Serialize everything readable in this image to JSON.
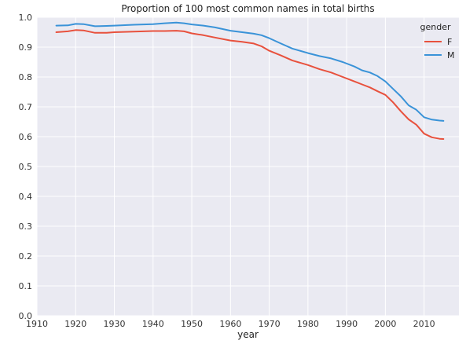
{
  "chart_data": {
    "type": "line",
    "title": "Proportion of 100 most common names in total births",
    "xlabel": "year",
    "ylabel": "",
    "xlim": [
      1910,
      2019
    ],
    "ylim": [
      0.0,
      1.0
    ],
    "xticks": [
      1910,
      1920,
      1930,
      1940,
      1950,
      1960,
      1970,
      1980,
      1990,
      2000,
      2010
    ],
    "yticks": [
      "0.0",
      "0.1",
      "0.2",
      "0.3",
      "0.4",
      "0.5",
      "0.6",
      "0.7",
      "0.8",
      "0.9",
      "1.0"
    ],
    "grid": true,
    "legend": {
      "title": "gender",
      "placement": "top-right"
    },
    "colors": {
      "background": "#eaeaf2",
      "grid": "#ffffff",
      "F": "#e8513d",
      "M": "#3a93d8"
    },
    "x": [
      1915,
      1918,
      1920,
      1922,
      1925,
      1928,
      1930,
      1935,
      1940,
      1943,
      1946,
      1948,
      1950,
      1953,
      1956,
      1960,
      1963,
      1966,
      1968,
      1970,
      1973,
      1976,
      1980,
      1983,
      1986,
      1989,
      1992,
      1994,
      1996,
      1998,
      2000,
      2002,
      2004,
      2006,
      2008,
      2010,
      2012,
      2014,
      2015
    ],
    "series": [
      {
        "name": "F",
        "values": [
          0.95,
          0.953,
          0.957,
          0.956,
          0.948,
          0.948,
          0.95,
          0.952,
          0.954,
          0.954,
          0.955,
          0.953,
          0.946,
          0.94,
          0.932,
          0.922,
          0.918,
          0.912,
          0.903,
          0.888,
          0.872,
          0.855,
          0.84,
          0.826,
          0.815,
          0.8,
          0.785,
          0.775,
          0.765,
          0.752,
          0.74,
          0.715,
          0.685,
          0.658,
          0.64,
          0.61,
          0.598,
          0.593,
          0.592
        ]
      },
      {
        "name": "M",
        "values": [
          0.972,
          0.973,
          0.978,
          0.977,
          0.97,
          0.971,
          0.972,
          0.975,
          0.977,
          0.98,
          0.982,
          0.98,
          0.976,
          0.972,
          0.966,
          0.955,
          0.95,
          0.945,
          0.94,
          0.93,
          0.912,
          0.895,
          0.88,
          0.87,
          0.862,
          0.85,
          0.835,
          0.822,
          0.815,
          0.803,
          0.785,
          0.76,
          0.735,
          0.705,
          0.69,
          0.665,
          0.657,
          0.654,
          0.653
        ]
      }
    ]
  }
}
